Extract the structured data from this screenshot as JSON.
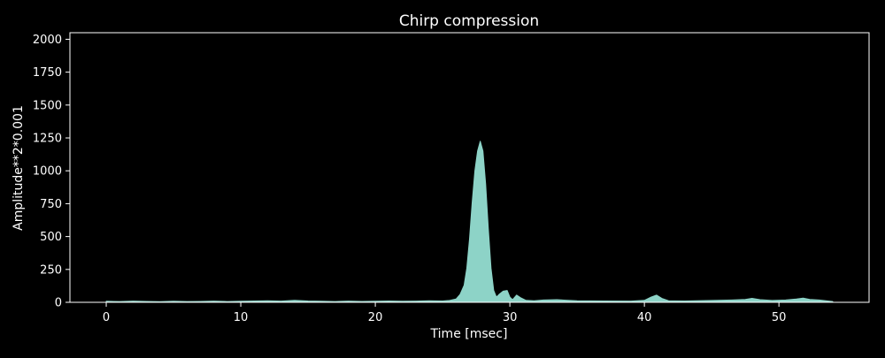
{
  "chart_data": {
    "type": "area",
    "title": "Chirp compression",
    "xlabel": "Time [msec]",
    "ylabel": "Amplitude**2*0.001",
    "xlim": [
      -2.7,
      56.7
    ],
    "ylim": [
      0,
      2050
    ],
    "xticks": [
      0,
      10,
      20,
      30,
      40,
      50
    ],
    "yticks": [
      0,
      250,
      500,
      750,
      1000,
      1250,
      1500,
      1750,
      2000
    ],
    "grid": false,
    "legend": "none",
    "colors": {
      "background": "#000000",
      "axes": "#ffffff",
      "text": "#ffffff",
      "fill": "#8dd3c7"
    },
    "series": [
      {
        "x": [
          0,
          1,
          2,
          3,
          4,
          5,
          6,
          7,
          8,
          9,
          10,
          11,
          12,
          13,
          14,
          15,
          16,
          17,
          18,
          19,
          20,
          21,
          22,
          23,
          24,
          25,
          25.5,
          26,
          26.3,
          26.6,
          26.8,
          27.0,
          27.2,
          27.4,
          27.6,
          27.8,
          28.0,
          28.2,
          28.4,
          28.6,
          28.8,
          29.0,
          29.2,
          29.5,
          29.8,
          30.0,
          30.2,
          30.5,
          30.8,
          31.2,
          31.8,
          32.5,
          33.5,
          35,
          37,
          39,
          40,
          40.5,
          40.9,
          41.3,
          41.8,
          43,
          45,
          46.5,
          47.5,
          48.0,
          48.6,
          49.5,
          50.5,
          51.3,
          51.8,
          52.3,
          53,
          53.5,
          54
        ],
        "y": [
          8,
          6,
          9,
          7,
          5,
          8,
          6,
          7,
          9,
          6,
          8,
          10,
          12,
          9,
          15,
          10,
          8,
          6,
          9,
          7,
          8,
          10,
          8,
          9,
          12,
          10,
          14,
          25,
          60,
          130,
          260,
          480,
          760,
          1000,
          1150,
          1225,
          1150,
          900,
          560,
          260,
          90,
          40,
          60,
          85,
          90,
          40,
          20,
          55,
          35,
          15,
          12,
          18,
          20,
          12,
          10,
          9,
          15,
          40,
          55,
          30,
          12,
          10,
          14,
          18,
          22,
          30,
          20,
          14,
          18,
          25,
          32,
          22,
          18,
          12,
          6
        ]
      }
    ]
  }
}
